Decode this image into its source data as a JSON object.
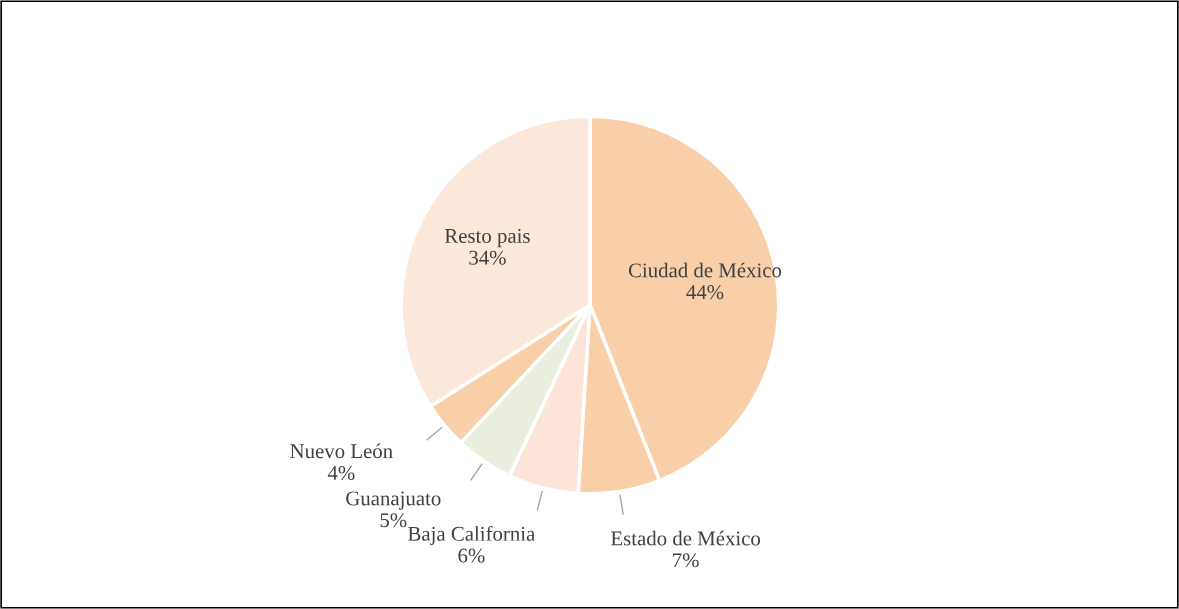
{
  "chart_data": {
    "type": "pie",
    "categories": [
      "Ciudad de México",
      "Estado de México",
      "Baja California",
      "Guanajuato",
      "Nuevo León",
      "Resto pais"
    ],
    "values": [
      44,
      7,
      6,
      5,
      4,
      34
    ],
    "value_labels": [
      "44%",
      "7%",
      "6%",
      "5%",
      "4%",
      "34%"
    ],
    "colors": [
      "#f9cfaa",
      "#f9cfaa",
      "#fce5d8",
      "#e9eedf",
      "#f9cfaa",
      "#fce8da"
    ]
  }
}
